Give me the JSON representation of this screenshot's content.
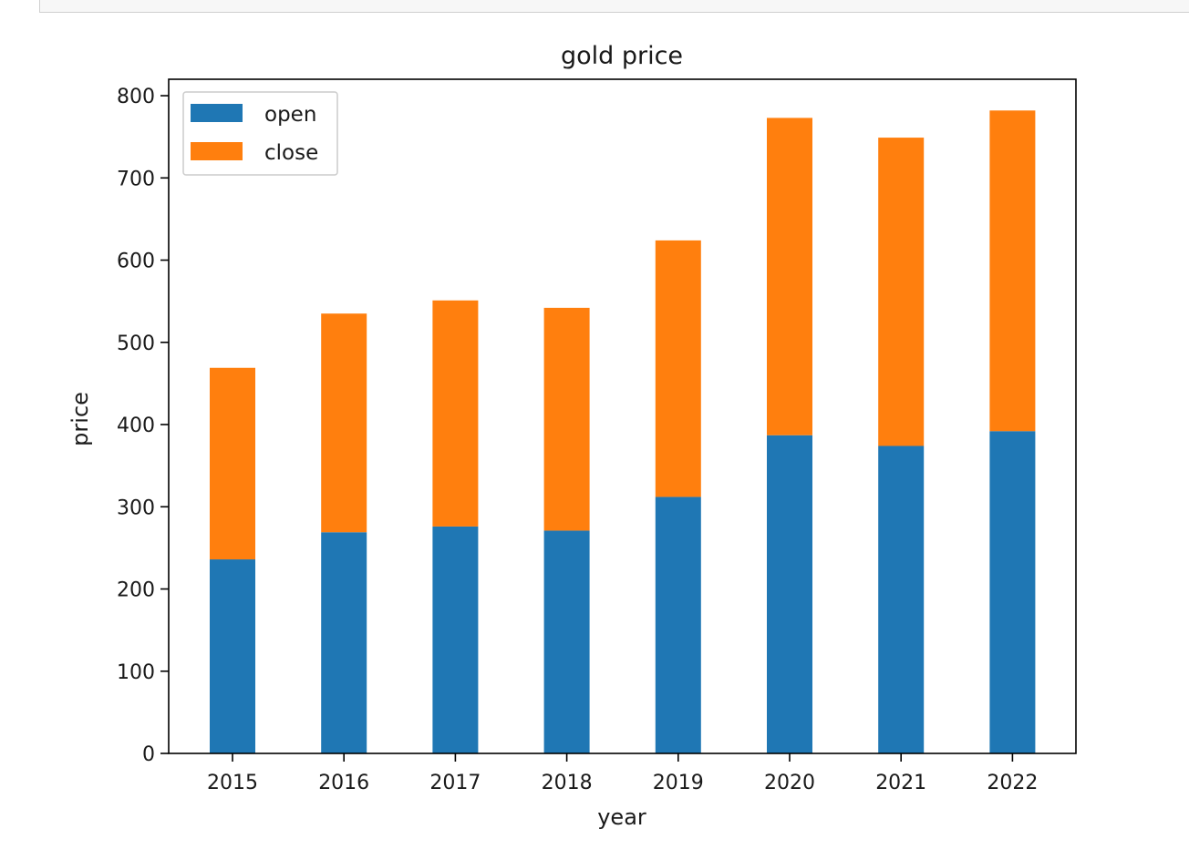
{
  "chart_data": {
    "type": "bar",
    "stacked": true,
    "title": "gold price",
    "xlabel": "year",
    "ylabel": "price",
    "categories": [
      "2015",
      "2016",
      "2017",
      "2018",
      "2019",
      "2020",
      "2021",
      "2022"
    ],
    "series": [
      {
        "name": "open",
        "color": "#1f77b4",
        "values": [
          236,
          269,
          276,
          271,
          312,
          387,
          374,
          392
        ]
      },
      {
        "name": "close",
        "color": "#ff7f0e",
        "values": [
          233,
          266,
          275,
          271,
          312,
          386,
          375,
          390
        ]
      }
    ],
    "ylim": [
      0,
      820
    ],
    "yticks": [
      "0",
      "100",
      "200",
      "300",
      "400",
      "500",
      "600",
      "700",
      "800"
    ],
    "legend_position": "top-left",
    "grid": false
  }
}
